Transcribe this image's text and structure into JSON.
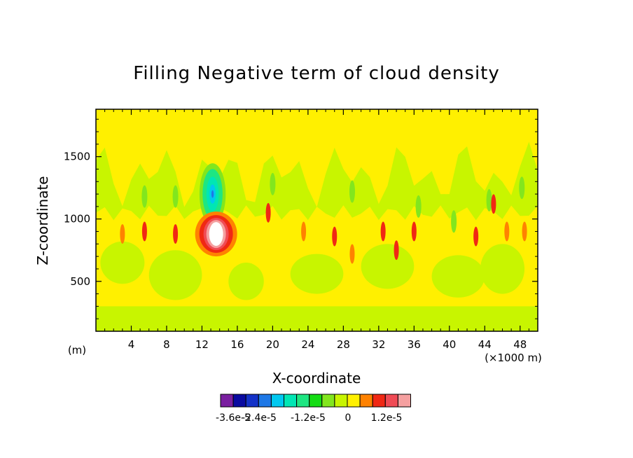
{
  "chart_data": {
    "type": "heatmap",
    "title": "Filling Negative term of cloud density",
    "xlabel": "X-coordinate",
    "ylabel": "Z-coordinate",
    "x_unit_label": "(×1000 m)",
    "y_unit_label": "(m)",
    "xlim": [
      0,
      50
    ],
    "ylim": [
      100,
      1880
    ],
    "x_ticks": [
      4,
      8,
      12,
      16,
      20,
      24,
      28,
      32,
      36,
      40,
      44,
      48
    ],
    "x_tick_labels": [
      "4",
      "8",
      "12",
      "16",
      "20",
      "24",
      "28",
      "32",
      "36",
      "40",
      "44",
      "48"
    ],
    "y_ticks": [
      500,
      1000,
      1500
    ],
    "y_tick_labels": [
      "500",
      "1000",
      "1500"
    ],
    "colorbar": {
      "colors": [
        "#7a1fa0",
        "#0a0aa0",
        "#1432c8",
        "#1e78e6",
        "#00c8f0",
        "#00e6b4",
        "#1ee682",
        "#14dc14",
        "#82e61e",
        "#c8f500",
        "#fff000",
        "#ff8200",
        "#f02814",
        "#f04b55",
        "#f5a0a0"
      ],
      "tick_labels": [
        "-3.6e-5",
        "-2.4e-5",
        "-1.2e-5",
        "0",
        "1.2e-5"
      ]
    },
    "background_value_color": "#fff000",
    "features": [
      {
        "x": 13.2,
        "z": 1150,
        "value": "-3.6e-5",
        "desc": "strong negative (cyan-blue core)"
      },
      {
        "x": 13.2,
        "z": 880,
        "value": "1.2e-5",
        "desc": "strong positive (red/white core)"
      },
      {
        "x": 20.0,
        "z": 1280,
        "value": "-1.2e-5"
      },
      {
        "x": 29.0,
        "z": 1200,
        "value": "-1.2e-5"
      },
      {
        "x": 29.0,
        "z": 700,
        "value": "0.6e-5"
      }
    ]
  }
}
